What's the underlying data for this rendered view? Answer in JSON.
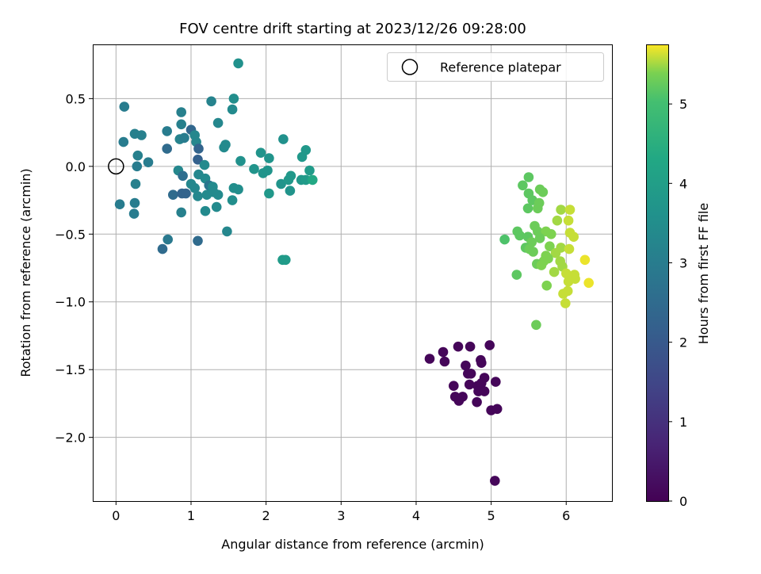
{
  "chart_data": {
    "type": "scatter",
    "title": "FOV centre drift starting at 2023/12/26 09:28:00",
    "xlabel": "Angular distance from reference (arcmin)",
    "ylabel": "Rotation from reference (arcmin)",
    "xlim": [
      -0.31,
      6.61
    ],
    "ylim": [
      -2.47,
      0.9
    ],
    "xticks": [
      0,
      1,
      2,
      3,
      4,
      5,
      6
    ],
    "yticks": [
      -2.0,
      -1.5,
      -1.0,
      -0.5,
      0.0,
      0.5
    ],
    "xtick_labels": [
      "0",
      "1",
      "2",
      "3",
      "4",
      "5",
      "6"
    ],
    "ytick_labels": [
      "−2.0",
      "−1.5",
      "−1.0",
      "−0.5",
      "0.0",
      "0.5"
    ],
    "grid": true,
    "legend": {
      "position": "top-right",
      "entries": [
        {
          "label": "Reference platepar",
          "marker": "open-circle"
        }
      ]
    },
    "reference_point": {
      "x": 0.0,
      "y": 0.0
    },
    "colormap": "viridis",
    "colorbar": {
      "label": "Hours from first FF file",
      "range": [
        0,
        5.75
      ],
      "ticks": [
        0,
        1,
        2,
        3,
        4,
        5
      ],
      "tick_labels": [
        "0",
        "1",
        "2",
        "3",
        "4",
        "5"
      ]
    },
    "points": [
      {
        "x": 4.18,
        "y": -1.42,
        "c": 0.1
      },
      {
        "x": 4.36,
        "y": -1.37,
        "c": 0.1
      },
      {
        "x": 4.38,
        "y": -1.44,
        "c": 0.1
      },
      {
        "x": 4.56,
        "y": -1.33,
        "c": 0.1
      },
      {
        "x": 4.72,
        "y": -1.33,
        "c": 0.1
      },
      {
        "x": 4.98,
        "y": -1.32,
        "c": 0.1
      },
      {
        "x": 4.86,
        "y": -1.43,
        "c": 0.1
      },
      {
        "x": 4.87,
        "y": -1.45,
        "c": 0.1
      },
      {
        "x": 4.66,
        "y": -1.47,
        "c": 0.1
      },
      {
        "x": 4.69,
        "y": -1.53,
        "c": 0.1
      },
      {
        "x": 4.73,
        "y": -1.53,
        "c": 0.1
      },
      {
        "x": 4.91,
        "y": -1.56,
        "c": 0.1
      },
      {
        "x": 4.71,
        "y": -1.61,
        "c": 0.1
      },
      {
        "x": 5.06,
        "y": -1.59,
        "c": 0.1
      },
      {
        "x": 4.5,
        "y": -1.62,
        "c": 0.1
      },
      {
        "x": 4.82,
        "y": -1.62,
        "c": 0.1
      },
      {
        "x": 4.87,
        "y": -1.6,
        "c": 0.1
      },
      {
        "x": 4.83,
        "y": -1.66,
        "c": 0.1
      },
      {
        "x": 4.91,
        "y": -1.66,
        "c": 0.1
      },
      {
        "x": 4.52,
        "y": -1.7,
        "c": 0.1
      },
      {
        "x": 4.62,
        "y": -1.7,
        "c": 0.1
      },
      {
        "x": 4.57,
        "y": -1.73,
        "c": 0.1
      },
      {
        "x": 4.81,
        "y": -1.74,
        "c": 0.1
      },
      {
        "x": 5.0,
        "y": -1.8,
        "c": 0.1
      },
      {
        "x": 5.08,
        "y": -1.79,
        "c": 0.1
      },
      {
        "x": 5.05,
        "y": -2.32,
        "c": 0.1
      },
      {
        "x": 0.11,
        "y": 0.44,
        "c": 3.0
      },
      {
        "x": 0.1,
        "y": 0.18,
        "c": 3.0
      },
      {
        "x": 0.25,
        "y": 0.24,
        "c": 3.1
      },
      {
        "x": 0.34,
        "y": 0.23,
        "c": 3.1
      },
      {
        "x": 0.29,
        "y": 0.08,
        "c": 3.1
      },
      {
        "x": 0.43,
        "y": 0.03,
        "c": 3.0
      },
      {
        "x": 0.28,
        "y": 0.0,
        "c": 3.0
      },
      {
        "x": 0.26,
        "y": -0.13,
        "c": 3.1
      },
      {
        "x": 0.05,
        "y": -0.28,
        "c": 3.0
      },
      {
        "x": 0.25,
        "y": -0.27,
        "c": 3.0
      },
      {
        "x": 0.24,
        "y": -0.35,
        "c": 3.0
      },
      {
        "x": 0.68,
        "y": 0.26,
        "c": 3.0
      },
      {
        "x": 0.68,
        "y": 0.13,
        "c": 2.5
      },
      {
        "x": 0.87,
        "y": 0.4,
        "c": 3.1
      },
      {
        "x": 0.87,
        "y": 0.31,
        "c": 3.1
      },
      {
        "x": 0.85,
        "y": 0.2,
        "c": 3.2
      },
      {
        "x": 0.91,
        "y": 0.21,
        "c": 3.0
      },
      {
        "x": 1.0,
        "y": 0.27,
        "c": 2.4
      },
      {
        "x": 1.05,
        "y": 0.23,
        "c": 3.3
      },
      {
        "x": 1.07,
        "y": 0.18,
        "c": 3.3
      },
      {
        "x": 1.1,
        "y": 0.13,
        "c": 2.3
      },
      {
        "x": 1.27,
        "y": 0.48,
        "c": 3.2
      },
      {
        "x": 1.57,
        "y": 0.5,
        "c": 3.5
      },
      {
        "x": 1.55,
        "y": 0.42,
        "c": 3.4
      },
      {
        "x": 1.36,
        "y": 0.32,
        "c": 3.3
      },
      {
        "x": 1.63,
        "y": 0.76,
        "c": 3.6
      },
      {
        "x": 1.44,
        "y": 0.14,
        "c": 3.4
      },
      {
        "x": 1.46,
        "y": 0.16,
        "c": 3.4
      },
      {
        "x": 1.09,
        "y": 0.05,
        "c": 2.2
      },
      {
        "x": 0.83,
        "y": -0.03,
        "c": 3.3
      },
      {
        "x": 0.89,
        "y": -0.07,
        "c": 2.6
      },
      {
        "x": 1.18,
        "y": 0.01,
        "c": 3.4
      },
      {
        "x": 1.1,
        "y": -0.06,
        "c": 3.3
      },
      {
        "x": 1.19,
        "y": -0.09,
        "c": 3.4
      },
      {
        "x": 1.0,
        "y": -0.13,
        "c": 3.3
      },
      {
        "x": 1.05,
        "y": -0.16,
        "c": 3.3
      },
      {
        "x": 1.24,
        "y": -0.14,
        "c": 2.8
      },
      {
        "x": 1.29,
        "y": -0.15,
        "c": 3.4
      },
      {
        "x": 0.76,
        "y": -0.21,
        "c": 2.5
      },
      {
        "x": 0.88,
        "y": -0.2,
        "c": 2.3
      },
      {
        "x": 0.93,
        "y": -0.2,
        "c": 2.3
      },
      {
        "x": 1.09,
        "y": -0.22,
        "c": 3.3
      },
      {
        "x": 1.21,
        "y": -0.21,
        "c": 3.4
      },
      {
        "x": 1.36,
        "y": -0.21,
        "c": 3.4
      },
      {
        "x": 1.3,
        "y": -0.19,
        "c": 3.4
      },
      {
        "x": 1.55,
        "y": -0.25,
        "c": 3.5
      },
      {
        "x": 1.57,
        "y": -0.16,
        "c": 3.5
      },
      {
        "x": 1.63,
        "y": -0.17,
        "c": 3.5
      },
      {
        "x": 0.87,
        "y": -0.34,
        "c": 3.1
      },
      {
        "x": 1.19,
        "y": -0.33,
        "c": 3.4
      },
      {
        "x": 1.34,
        "y": -0.3,
        "c": 3.4
      },
      {
        "x": 0.69,
        "y": -0.54,
        "c": 2.9
      },
      {
        "x": 0.62,
        "y": -0.61,
        "c": 2.5
      },
      {
        "x": 1.09,
        "y": -0.55,
        "c": 2.5
      },
      {
        "x": 1.48,
        "y": -0.48,
        "c": 3.3
      },
      {
        "x": 1.66,
        "y": 0.04,
        "c": 3.6
      },
      {
        "x": 1.84,
        "y": -0.02,
        "c": 3.7
      },
      {
        "x": 1.93,
        "y": 0.1,
        "c": 3.7
      },
      {
        "x": 2.04,
        "y": 0.06,
        "c": 3.7
      },
      {
        "x": 1.96,
        "y": -0.05,
        "c": 3.7
      },
      {
        "x": 2.02,
        "y": -0.03,
        "c": 3.7
      },
      {
        "x": 2.23,
        "y": 0.2,
        "c": 3.6
      },
      {
        "x": 2.2,
        "y": -0.13,
        "c": 3.7
      },
      {
        "x": 2.3,
        "y": -0.1,
        "c": 3.8
      },
      {
        "x": 2.33,
        "y": -0.07,
        "c": 3.8
      },
      {
        "x": 2.47,
        "y": -0.1,
        "c": 3.8
      },
      {
        "x": 2.48,
        "y": 0.07,
        "c": 3.8
      },
      {
        "x": 2.53,
        "y": 0.12,
        "c": 3.8
      },
      {
        "x": 2.58,
        "y": -0.03,
        "c": 3.9
      },
      {
        "x": 2.53,
        "y": -0.1,
        "c": 3.9
      },
      {
        "x": 2.62,
        "y": -0.1,
        "c": 4.3
      },
      {
        "x": 2.04,
        "y": -0.2,
        "c": 3.8
      },
      {
        "x": 2.32,
        "y": -0.18,
        "c": 3.7
      },
      {
        "x": 2.22,
        "y": -0.69,
        "c": 3.9
      },
      {
        "x": 2.26,
        "y": -0.69,
        "c": 3.9
      },
      {
        "x": 5.5,
        "y": -0.08,
        "c": 5.2
      },
      {
        "x": 5.42,
        "y": -0.14,
        "c": 5.2
      },
      {
        "x": 5.5,
        "y": -0.2,
        "c": 5.2
      },
      {
        "x": 5.65,
        "y": -0.17,
        "c": 5.3
      },
      {
        "x": 5.69,
        "y": -0.19,
        "c": 5.3
      },
      {
        "x": 5.55,
        "y": -0.25,
        "c": 5.2
      },
      {
        "x": 5.64,
        "y": -0.27,
        "c": 5.3
      },
      {
        "x": 5.49,
        "y": -0.31,
        "c": 5.2
      },
      {
        "x": 5.62,
        "y": -0.31,
        "c": 5.3
      },
      {
        "x": 5.93,
        "y": -0.32,
        "c": 5.5
      },
      {
        "x": 6.05,
        "y": -0.32,
        "c": 5.6
      },
      {
        "x": 5.88,
        "y": -0.4,
        "c": 5.5
      },
      {
        "x": 6.03,
        "y": -0.4,
        "c": 5.6
      },
      {
        "x": 5.18,
        "y": -0.54,
        "c": 5.1
      },
      {
        "x": 5.35,
        "y": -0.48,
        "c": 5.2
      },
      {
        "x": 5.38,
        "y": -0.51,
        "c": 5.2
      },
      {
        "x": 5.49,
        "y": -0.52,
        "c": 5.2
      },
      {
        "x": 5.58,
        "y": -0.44,
        "c": 5.3
      },
      {
        "x": 5.62,
        "y": -0.48,
        "c": 5.3
      },
      {
        "x": 5.73,
        "y": -0.48,
        "c": 5.4
      },
      {
        "x": 5.8,
        "y": -0.5,
        "c": 5.4
      },
      {
        "x": 5.65,
        "y": -0.53,
        "c": 5.3
      },
      {
        "x": 5.54,
        "y": -0.56,
        "c": 5.3
      },
      {
        "x": 5.46,
        "y": -0.6,
        "c": 5.2
      },
      {
        "x": 5.51,
        "y": -0.61,
        "c": 5.3
      },
      {
        "x": 5.56,
        "y": -0.63,
        "c": 5.3
      },
      {
        "x": 5.78,
        "y": -0.59,
        "c": 5.4
      },
      {
        "x": 5.86,
        "y": -0.64,
        "c": 5.5
      },
      {
        "x": 5.93,
        "y": -0.6,
        "c": 5.5
      },
      {
        "x": 6.04,
        "y": -0.61,
        "c": 5.6
      },
      {
        "x": 6.05,
        "y": -0.49,
        "c": 5.6
      },
      {
        "x": 6.1,
        "y": -0.52,
        "c": 5.6
      },
      {
        "x": 5.73,
        "y": -0.66,
        "c": 5.4
      },
      {
        "x": 5.7,
        "y": -0.7,
        "c": 5.4
      },
      {
        "x": 5.76,
        "y": -0.68,
        "c": 5.4
      },
      {
        "x": 5.61,
        "y": -0.72,
        "c": 5.3
      },
      {
        "x": 5.67,
        "y": -0.73,
        "c": 5.4
      },
      {
        "x": 5.92,
        "y": -0.7,
        "c": 5.5
      },
      {
        "x": 5.95,
        "y": -0.74,
        "c": 5.5
      },
      {
        "x": 5.84,
        "y": -0.78,
        "c": 5.5
      },
      {
        "x": 6.0,
        "y": -0.79,
        "c": 5.6
      },
      {
        "x": 6.11,
        "y": -0.8,
        "c": 5.6
      },
      {
        "x": 6.12,
        "y": -0.83,
        "c": 5.6
      },
      {
        "x": 6.25,
        "y": -0.69,
        "c": 5.7
      },
      {
        "x": 5.34,
        "y": -0.8,
        "c": 5.2
      },
      {
        "x": 6.03,
        "y": -0.85,
        "c": 5.6
      },
      {
        "x": 5.74,
        "y": -0.88,
        "c": 5.4
      },
      {
        "x": 6.3,
        "y": -0.86,
        "c": 5.7
      },
      {
        "x": 6.02,
        "y": -0.92,
        "c": 5.6
      },
      {
        "x": 5.96,
        "y": -0.94,
        "c": 5.6
      },
      {
        "x": 5.99,
        "y": -1.01,
        "c": 5.6
      },
      {
        "x": 5.6,
        "y": -1.17,
        "c": 5.3
      }
    ]
  }
}
